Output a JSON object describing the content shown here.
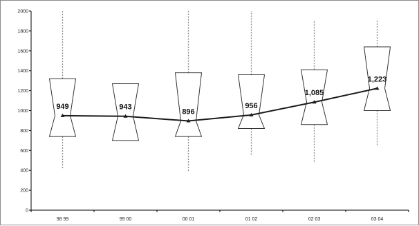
{
  "chart_data": {
    "type": "box",
    "title": "",
    "xlabel": "",
    "ylabel": "",
    "ylim": [
      0,
      2000
    ],
    "y_ticks": [
      0,
      200,
      400,
      600,
      800,
      1000,
      1200,
      1400,
      1600,
      1800,
      2000
    ],
    "grid": false,
    "categories": [
      "98 99",
      "99 00",
      "00 01",
      "01 02",
      "02 03",
      "03 04"
    ],
    "boxes": [
      {
        "whisker_low": 410,
        "q1": 740,
        "median": 949,
        "q3": 1320,
        "whisker_high": 2000
      },
      {
        "whisker_low": null,
        "q1": 700,
        "median": 943,
        "q3": 1270,
        "whisker_high": null
      },
      {
        "whisker_low": 380,
        "q1": 740,
        "median": 896,
        "q3": 1380,
        "whisker_high": 2000
      },
      {
        "whisker_low": 550,
        "q1": 820,
        "median": 956,
        "q3": 1360,
        "whisker_high": 2000
      },
      {
        "whisker_low": 480,
        "q1": 860,
        "median": 1085,
        "q3": 1410,
        "whisker_high": 1910
      },
      {
        "whisker_low": 650,
        "q1": 1000,
        "median": 1223,
        "q3": 1640,
        "whisker_high": 1920
      }
    ],
    "line_values": [
      949,
      943,
      896,
      956,
      1085,
      1223
    ],
    "data_labels": [
      "949",
      "943",
      "896",
      "956",
      "1,085",
      "1,223"
    ],
    "colors": {
      "line": "#1a1a1a",
      "box": "#333333",
      "whisker": "#888888",
      "axis": "#000000"
    }
  }
}
